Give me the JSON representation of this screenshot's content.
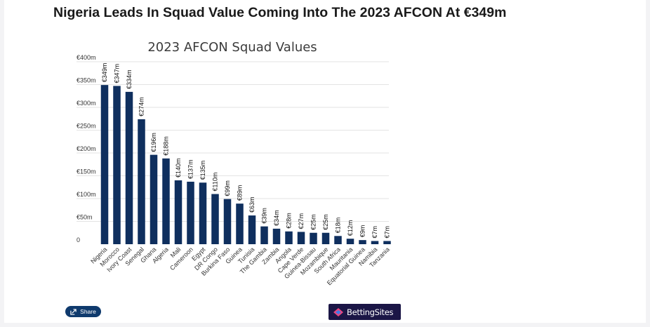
{
  "headline": "Nigeria Leads In Squad Value Coming Into The 2023 AFCON At €349m",
  "share": {
    "label": "Share"
  },
  "logo": {
    "text": "BettingSites"
  },
  "colors": {
    "bar": "#0f2f5e",
    "grid": "#e3e3e3",
    "title": "#3b3b3b",
    "text": "#333333",
    "share_bg": "#0f3a6d",
    "logo_bg": "#1b1646"
  },
  "chart_data": {
    "type": "bar",
    "title": "2023 AFCON Squad Values",
    "xlabel": "",
    "ylabel": "",
    "ylim": [
      0,
      400
    ],
    "yticks": [
      0,
      50,
      100,
      150,
      200,
      250,
      300,
      350,
      400
    ],
    "ytick_labels": [
      "0",
      "€50m",
      "€100m",
      "€150m",
      "€200m",
      "€250m",
      "€300m",
      "€350m",
      "€400m"
    ],
    "grid": true,
    "categories": [
      "Nigeria",
      "Morocco",
      "Ivory Coast",
      "Senegal",
      "Ghana",
      "Algeria",
      "Mali",
      "Cameroon",
      "Egypt",
      "DR Congo",
      "Burkina Faso",
      "Guinea",
      "Tunisia",
      "The Gambia",
      "Zambia",
      "Angola",
      "Cape Verde",
      "Guinea-Bissau",
      "Mozambique",
      "South Africa",
      "Mauritania",
      "Equatorial Guinea",
      "Namibia",
      "Tanzania"
    ],
    "values": [
      349,
      347,
      334,
      274,
      196,
      188,
      140,
      137,
      135,
      110,
      99,
      89,
      63,
      39,
      34,
      28,
      27,
      25,
      25,
      18,
      12,
      9,
      7,
      7
    ],
    "data_labels": [
      "€349m",
      "€347m",
      "€334m",
      "€274m",
      "€196m",
      "€188m",
      "€140m",
      "€137m",
      "€135m",
      "€110m",
      "€99m",
      "€89m",
      "€63m",
      "€39m",
      "€34m",
      "€28m",
      "€27m",
      "€25m",
      "€25m",
      "€18m",
      "€12m",
      "€9m",
      "€7m",
      "€7m"
    ]
  }
}
